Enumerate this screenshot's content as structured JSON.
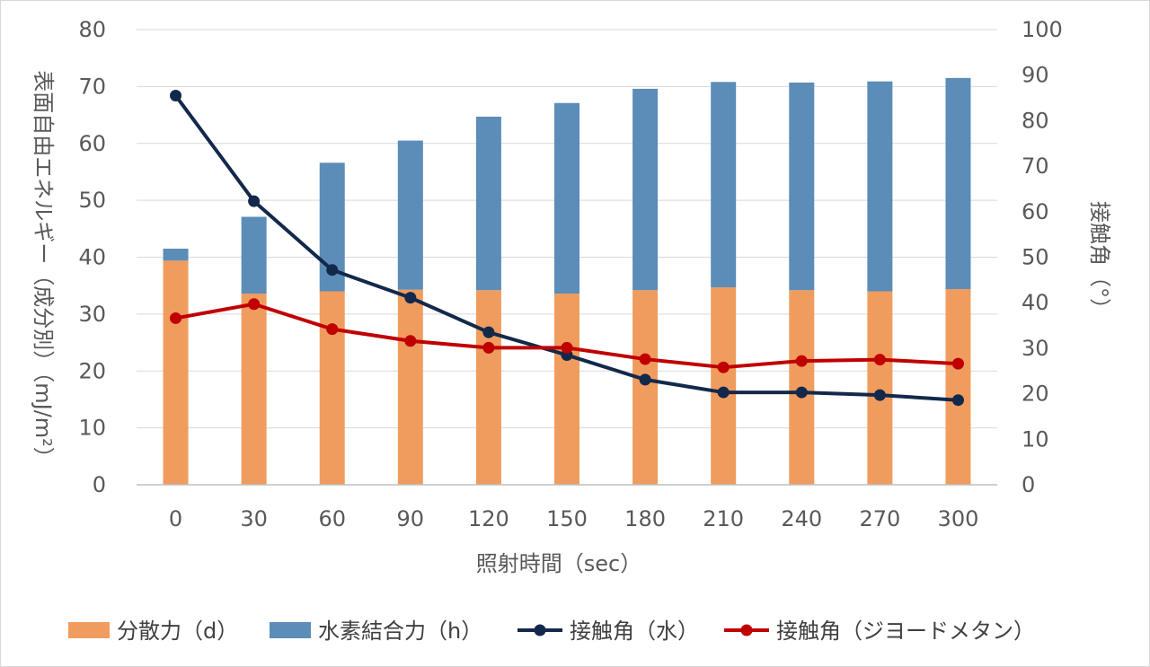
{
  "chart_data": {
    "type": "bar+line",
    "title": "",
    "x": [
      0,
      30,
      60,
      90,
      120,
      150,
      180,
      210,
      240,
      270,
      300
    ],
    "xlabel": "照射時間（sec）",
    "ylabel_left": "表面自由エネルギー（成分別）（mJ/m²）",
    "ylabel_right": "接触角（°）",
    "ylim_left": [
      0,
      80
    ],
    "yticks_left": [
      0,
      10,
      20,
      30,
      40,
      50,
      60,
      70,
      80
    ],
    "ylim_right": [
      0,
      100
    ],
    "yticks_right": [
      0,
      10,
      20,
      30,
      40,
      50,
      60,
      70,
      80,
      90,
      100
    ],
    "grid": true,
    "legend_position": "bottom",
    "bar_series": [
      {
        "name": "分散力（d）",
        "color": "#F09C5E",
        "stacked": true,
        "axis": "left",
        "values": [
          39.4,
          33.6,
          34.0,
          34.3,
          34.2,
          33.6,
          34.2,
          34.7,
          34.2,
          34.0,
          34.4
        ]
      },
      {
        "name": "水素結合力（h）",
        "color": "#5B8DB8",
        "stacked": true,
        "axis": "left",
        "values": [
          2.1,
          13.5,
          22.6,
          26.2,
          30.5,
          33.5,
          35.4,
          36.1,
          36.5,
          36.9,
          37.1
        ]
      }
    ],
    "line_series": [
      {
        "name": "接触角（水）",
        "color": "#13294B",
        "axis": "right",
        "values": [
          85.5,
          62.3,
          47.2,
          41.1,
          33.5,
          28.5,
          23.1,
          20.3,
          20.3,
          19.7,
          18.6
        ]
      },
      {
        "name": "接触角（ジヨードメタン）",
        "color": "#C00000",
        "axis": "right",
        "values": [
          36.6,
          39.7,
          34.2,
          31.6,
          30.1,
          30.1,
          27.6,
          25.8,
          27.2,
          27.5,
          26.6
        ]
      }
    ]
  }
}
